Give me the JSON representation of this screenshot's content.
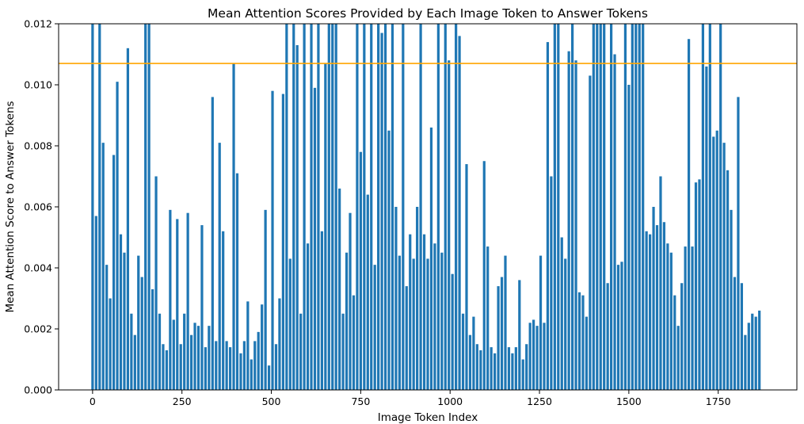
{
  "chart_data": {
    "type": "bar",
    "title": "Mean Attention Scores Provided by Each Image Token to Answer Tokens",
    "xlabel": "Image Token Index",
    "ylabel": "Mean Attention Score to Answer Tokens",
    "xlim": [
      -95,
      1970
    ],
    "ylim": [
      0,
      0.012
    ],
    "x_ticks": [
      0,
      250,
      500,
      750,
      1000,
      1250,
      1500,
      1750
    ],
    "y_ticks": [
      0.0,
      0.002,
      0.004,
      0.006,
      0.008,
      0.01,
      0.012
    ],
    "y_tick_decimals": 3,
    "grid": false,
    "bar_color": "#1f77b4",
    "threshold": {
      "value": 0.0107,
      "color": "#ffa500"
    },
    "series": [
      {
        "values": [
          0.0121,
          0.0057,
          0.0121,
          0.0081,
          0.0041,
          0.003,
          0.0077,
          0.0101,
          0.0051,
          0.0045,
          0.0112,
          0.0025,
          0.0018,
          0.0044,
          0.0037,
          0.0121,
          0.0121,
          0.0033,
          0.007,
          0.0025,
          0.0015,
          0.0013,
          0.0059,
          0.0023,
          0.0056,
          0.0015,
          0.0025,
          0.0058,
          0.0018,
          0.0022,
          0.0021,
          0.0054,
          0.0014,
          0.0021,
          0.0096,
          0.0016,
          0.0081,
          0.0052,
          0.0016,
          0.0014,
          0.0107,
          0.0071,
          0.0012,
          0.0016,
          0.0029,
          0.001,
          0.0016,
          0.0019,
          0.0028,
          0.0059,
          0.0008,
          0.0098,
          0.0015,
          0.003,
          0.0097,
          0.0121,
          0.0043,
          0.0121,
          0.0113,
          0.0025,
          0.0121,
          0.0048,
          0.0121,
          0.0099,
          0.0121,
          0.0052,
          0.0107,
          0.0121,
          0.0121,
          0.0121,
          0.0066,
          0.0025,
          0.0045,
          0.0058,
          0.0031,
          0.0121,
          0.0078,
          0.0121,
          0.0064,
          0.0121,
          0.0041,
          0.0121,
          0.0117,
          0.0121,
          0.0085,
          0.0121,
          0.006,
          0.0044,
          0.0121,
          0.0034,
          0.0051,
          0.0043,
          0.006,
          0.0121,
          0.0051,
          0.0043,
          0.0086,
          0.0048,
          0.0121,
          0.0045,
          0.0121,
          0.0108,
          0.0038,
          0.0121,
          0.0116,
          0.0025,
          0.0074,
          0.0018,
          0.0024,
          0.0015,
          0.0013,
          0.0075,
          0.0047,
          0.0014,
          0.0012,
          0.0034,
          0.0037,
          0.0044,
          0.0014,
          0.0012,
          0.0014,
          0.0036,
          0.001,
          0.0015,
          0.0022,
          0.0023,
          0.0021,
          0.0044,
          0.0022,
          0.0114,
          0.007,
          0.0121,
          0.0121,
          0.005,
          0.0043,
          0.0111,
          0.0121,
          0.0108,
          0.0032,
          0.0031,
          0.0024,
          0.0103,
          0.0121,
          0.0121,
          0.0121,
          0.0121,
          0.0035,
          0.0121,
          0.011,
          0.0041,
          0.0042,
          0.0121,
          0.01,
          0.0121,
          0.0121,
          0.0121,
          0.0121,
          0.0052,
          0.0051,
          0.006,
          0.0054,
          0.007,
          0.0055,
          0.0048,
          0.0045,
          0.0031,
          0.0021,
          0.0035,
          0.0047,
          0.0115,
          0.0047,
          0.0068,
          0.0069,
          0.0121,
          0.0106,
          0.0121,
          0.0083,
          0.0085,
          0.0121,
          0.0081,
          0.0072,
          0.0059,
          0.0037,
          0.0096,
          0.0035,
          0.0018,
          0.0022,
          0.0025,
          0.0024,
          0.0026
        ]
      }
    ]
  }
}
